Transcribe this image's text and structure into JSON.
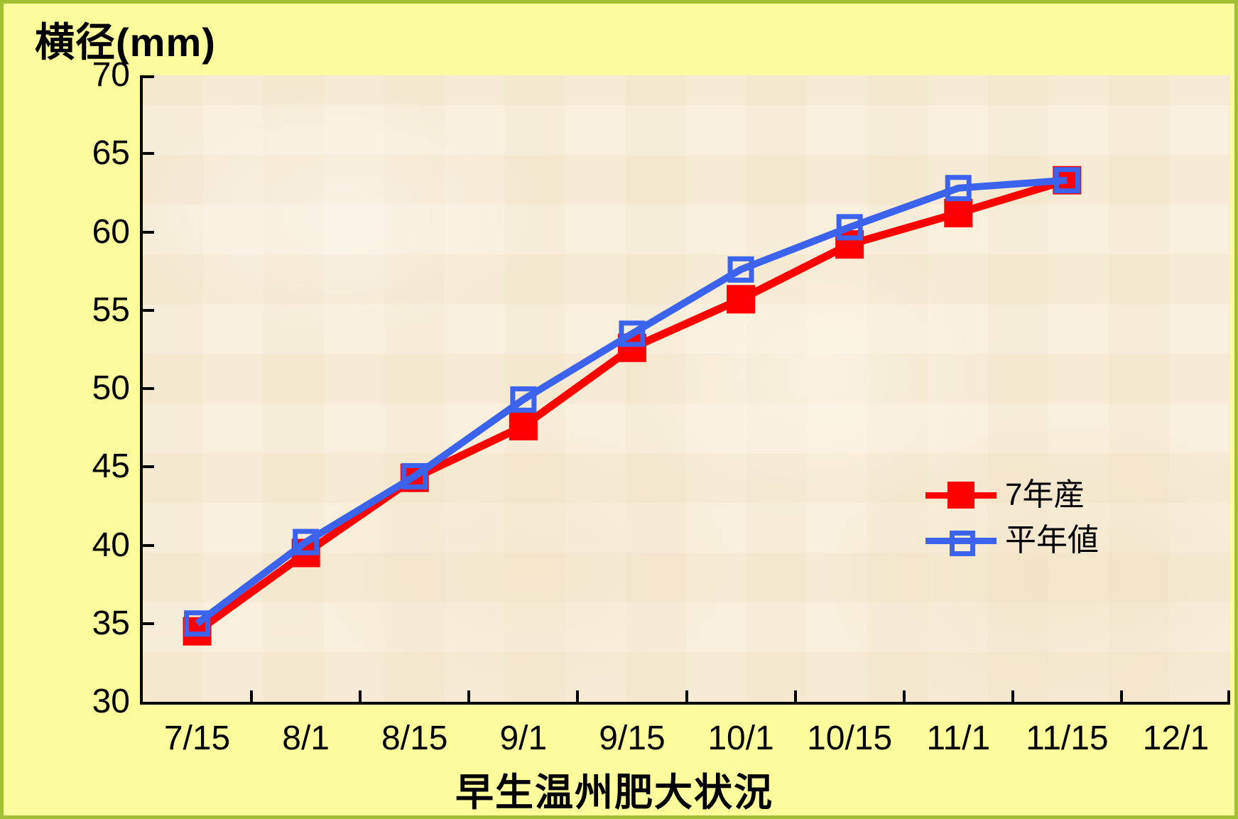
{
  "colors": {
    "page_background": "#FCFC9C",
    "frame_border": "#A2BE33",
    "plot_background": "#F7EDD8",
    "axis": "#000000"
  },
  "chart_data": {
    "type": "line",
    "y_axis_title": "横径(mm)",
    "x_axis_title": "早生温州肥大状況",
    "categories": [
      "7/15",
      "8/1",
      "8/15",
      "9/1",
      "9/15",
      "10/1",
      "10/15",
      "11/1",
      "11/15",
      "12/1"
    ],
    "series": [
      {
        "name": "7年産",
        "color": "#FF0000",
        "marker": "filled-square",
        "line_width": 11,
        "values": [
          34.5,
          39.5,
          44.3,
          47.6,
          52.6,
          55.7,
          59.2,
          61.2,
          63.3
        ]
      },
      {
        "name": "平年値",
        "color": "#3B63EE",
        "marker": "open-square",
        "line_width": 10,
        "values": [
          35.0,
          40.2,
          44.4,
          49.3,
          53.5,
          57.6,
          60.3,
          62.8,
          63.3
        ]
      }
    ],
    "ylim": [
      30,
      70
    ],
    "y_ticks": [
      70,
      65,
      60,
      55,
      50,
      45,
      40,
      35,
      30
    ],
    "grid": false,
    "legend_position": "inside-right-middle"
  }
}
